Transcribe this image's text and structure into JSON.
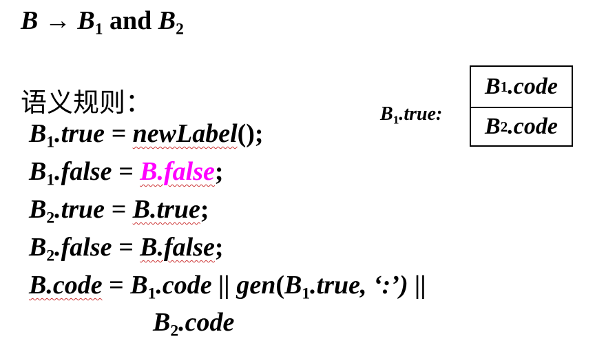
{
  "production": {
    "lhs": "B",
    "arrow": "→",
    "b1": "B",
    "sub1": "1",
    "and": "and",
    "b2": "B",
    "sub2": "2"
  },
  "semantic_rules_label": "语义规则：",
  "rules": {
    "r1": {
      "b": "B",
      "sub": "1",
      "rest_pre": ".true = ",
      "func": "newLabel",
      "rest_post": "();"
    },
    "r2": {
      "b": "B",
      "sub": "1",
      "rest_pre": ".false = ",
      "highlight": "B.false",
      "rest_post": ";"
    },
    "r3": {
      "b": "B",
      "sub": "2",
      "rest_pre": ".true = ",
      "val": "B.true",
      "rest_post": ";"
    },
    "r4": {
      "b": "B",
      "sub": "2",
      "rest_pre": ".false = ",
      "val": "B.false",
      "rest_post": ";"
    },
    "r5": {
      "lhs": "B.code",
      "eq": " = ",
      "b1": "B",
      "sub1": "1",
      "code1": ".code || ",
      "gen": "gen",
      "open": "(",
      "b1b": "B",
      "sub1b": "1",
      "mid": ".true, ‘:’) ||",
      "b2": "B",
      "sub2": "2",
      "code2": ".code"
    }
  },
  "diagram": {
    "label_b": "B",
    "label_sub": "1",
    "label_rest": ".true:",
    "top_b": "B",
    "top_sub": "1",
    "top_rest": ".code",
    "bot_b": "B",
    "bot_sub": "2",
    "bot_rest": ".code"
  },
  "colors": {
    "highlight": "#ff00ff",
    "squiggle": "#cc3333"
  }
}
